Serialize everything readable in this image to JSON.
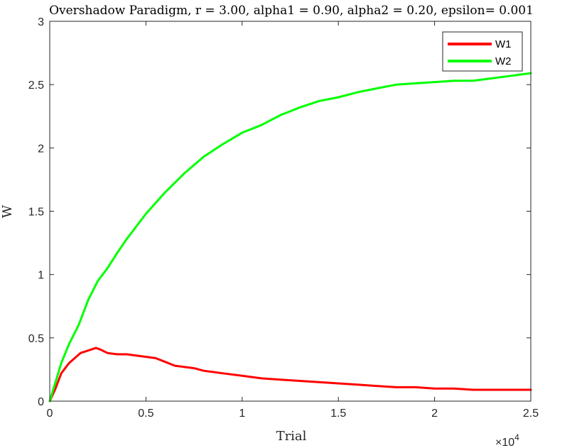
{
  "chart_data": {
    "type": "line",
    "title": "Overshadow Paradigm, r = 3.00, alpha1 = 0.90, alpha2 = 0.20, epsilon= 0.001",
    "xlabel": "Trial",
    "ylabel": "W",
    "x_exponent_label": "×10",
    "x_exponent_power": "4",
    "xlim": [
      0,
      25000
    ],
    "ylim": [
      0,
      3
    ],
    "xticks": [
      0,
      5000,
      10000,
      15000,
      20000,
      25000
    ],
    "xtick_labels": [
      "0",
      "0.5",
      "1",
      "1.5",
      "2",
      "2.5"
    ],
    "yticks": [
      0,
      0.5,
      1,
      1.5,
      2,
      2.5,
      3
    ],
    "ytick_labels": [
      "0",
      "0.5",
      "1",
      "1.5",
      "2",
      "2.5",
      "3"
    ],
    "grid": false,
    "legend_position": "top-right",
    "series": [
      {
        "name": "W1",
        "color": "#ff0000",
        "x": [
          0,
          300,
          600,
          1000,
          1300,
          1600,
          2000,
          2400,
          2600,
          3000,
          3500,
          4000,
          5000,
          5500,
          6000,
          6500,
          7000,
          7500,
          8000,
          8500,
          9000,
          10000,
          11000,
          12000,
          13000,
          14000,
          15000,
          16000,
          17000,
          18000,
          19000,
          20000,
          21000,
          22000,
          23000,
          24000,
          25000
        ],
        "y": [
          0,
          0.1,
          0.22,
          0.3,
          0.34,
          0.38,
          0.4,
          0.42,
          0.41,
          0.38,
          0.37,
          0.37,
          0.35,
          0.34,
          0.31,
          0.28,
          0.27,
          0.26,
          0.24,
          0.23,
          0.22,
          0.2,
          0.18,
          0.17,
          0.16,
          0.15,
          0.14,
          0.13,
          0.12,
          0.11,
          0.11,
          0.1,
          0.1,
          0.09,
          0.09,
          0.09,
          0.09
        ]
      },
      {
        "name": "W2",
        "color": "#00ff00",
        "x": [
          0,
          300,
          600,
          1000,
          1500,
          2000,
          2500,
          3000,
          3500,
          4000,
          4500,
          5000,
          6000,
          7000,
          8000,
          9000,
          10000,
          11000,
          12000,
          13000,
          14000,
          15000,
          16000,
          17000,
          18000,
          19000,
          20000,
          21000,
          22000,
          23000,
          24000,
          25000
        ],
        "y": [
          0,
          0.15,
          0.3,
          0.45,
          0.6,
          0.8,
          0.95,
          1.05,
          1.17,
          1.28,
          1.38,
          1.48,
          1.65,
          1.8,
          1.93,
          2.03,
          2.12,
          2.18,
          2.26,
          2.32,
          2.37,
          2.4,
          2.44,
          2.47,
          2.5,
          2.51,
          2.52,
          2.53,
          2.53,
          2.55,
          2.57,
          2.59
        ]
      }
    ]
  }
}
